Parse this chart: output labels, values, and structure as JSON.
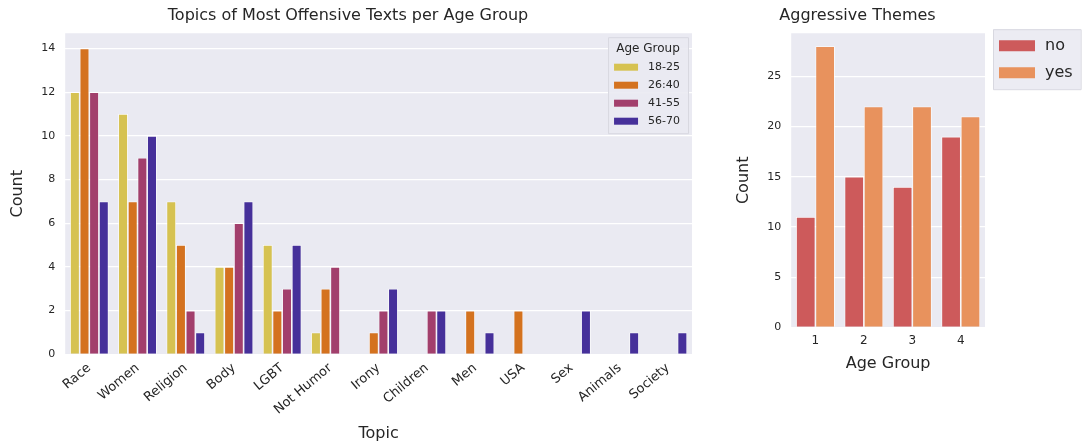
{
  "chart_data": [
    {
      "type": "bar",
      "title": "Topics of Most Offensive Texts per Age Group",
      "xlabel": "Topic",
      "ylabel": "Count",
      "legend_title": "Age Group",
      "legend": "top right",
      "grid": "y",
      "ylim": [
        0,
        14.7
      ],
      "yticks": [
        0,
        2,
        4,
        6,
        8,
        10,
        12,
        14
      ],
      "categories": [
        "Race",
        "Women",
        "Religion",
        "Body",
        "LGBT",
        "Not Humor",
        "Irony",
        "Children",
        "Men",
        "USA",
        "Sex",
        "Animals",
        "Society"
      ],
      "series": [
        {
          "name": "18-25",
          "color": "#d6c251",
          "values": [
            12,
            11,
            7,
            4,
            5,
            1,
            null,
            null,
            null,
            null,
            null,
            null,
            null
          ]
        },
        {
          "name": "26:40",
          "color": "#d4721f",
          "values": [
            14,
            7,
            5,
            4,
            2,
            3,
            1,
            null,
            2,
            2,
            null,
            null,
            null
          ]
        },
        {
          "name": "41-55",
          "color": "#a23f6c",
          "values": [
            12,
            9,
            2,
            6,
            3,
            4,
            2,
            2,
            null,
            null,
            null,
            null,
            null
          ]
        },
        {
          "name": "56-70",
          "color": "#46309a",
          "values": [
            7,
            10,
            1,
            7,
            5,
            null,
            3,
            2,
            1,
            null,
            2,
            1,
            1
          ]
        }
      ]
    },
    {
      "type": "bar",
      "title": "Aggressive Themes",
      "xlabel": "Age Group",
      "ylabel": "Count",
      "legend": "right",
      "grid": "y",
      "ylim": [
        0,
        29.3
      ],
      "yticks": [
        0,
        5,
        10,
        15,
        20,
        25
      ],
      "categories": [
        "1",
        "2",
        "3",
        "4"
      ],
      "series": [
        {
          "name": "no",
          "color": "#cd5a5b",
          "values": [
            11,
            15,
            14,
            19
          ]
        },
        {
          "name": "yes",
          "color": "#e8925d",
          "values": [
            28,
            22,
            22,
            21
          ]
        }
      ]
    }
  ]
}
